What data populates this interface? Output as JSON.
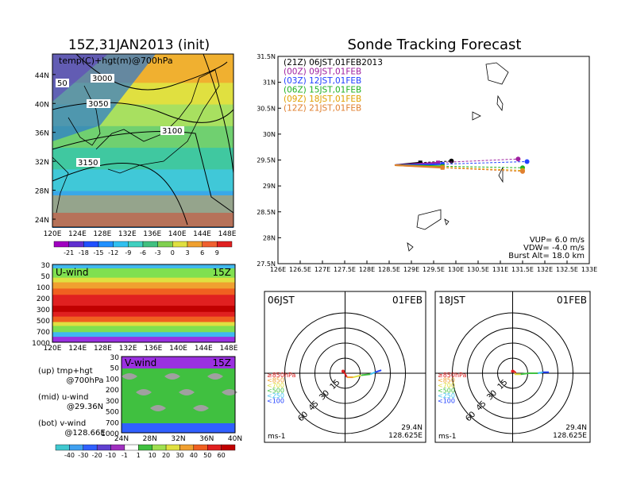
{
  "main_title": "Sonde Tracking Forecast",
  "init_title": "15Z,31JAN2013 (init)",
  "colors": {
    "track_00Z": "#a020a0",
    "track_03Z": "#2040ff",
    "track_06Z": "#20b020",
    "track_09Z": "#e0a000",
    "track_12Z": "#e08030",
    "track_21Z": "#000000",
    "map_bg_t": [
      "#2a8ad8",
      "#3aa8e8",
      "#40c8d8",
      "#40c8a0",
      "#70d070",
      "#a8e060",
      "#e0e040",
      "#f0b030",
      "#f08030",
      "#e84020"
    ],
    "wind_bands": [
      "#9a30e0",
      "#3060ff",
      "#40b8f0",
      "#40d090",
      "#80e050",
      "#e0e040",
      "#f0a030",
      "#f06020",
      "#e02020",
      "#c00000"
    ]
  },
  "chart_data": [
    {
      "type": "heatmap",
      "name_label": "temp(C)+hgt(m)@700hPa",
      "x_ticks": [
        "120E",
        "124E",
        "128E",
        "132E",
        "136E",
        "140E",
        "144E",
        "148E"
      ],
      "y_ticks": [
        "24N",
        "28N",
        "32N",
        "36N",
        "40N",
        "44N"
      ],
      "contour_labels": [
        "3000",
        "3050",
        "3100",
        "3150",
        "50"
      ],
      "colorbar": [
        "-21",
        "-18",
        "-15",
        "-12",
        "-9",
        "-6",
        "-3",
        "0",
        "3",
        "6",
        "9"
      ]
    },
    {
      "type": "line",
      "x_ticks": [
        "126E",
        "126.5E",
        "127E",
        "127.5E",
        "128E",
        "128.5E",
        "129E",
        "129.5E",
        "130E",
        "130.5E",
        "131E",
        "131.5E",
        "132E",
        "132.5E",
        "133E"
      ],
      "y_ticks": [
        "27.5N",
        "28N",
        "28.5N",
        "29N",
        "29.5N",
        "30N",
        "30.5N",
        "31N",
        "31.5N"
      ],
      "xlim": [
        126,
        133
      ],
      "ylim": [
        27.5,
        31.5
      ],
      "legend": [
        {
          "label": "(21Z) 06JST,01FEB2013",
          "color": "#000000"
        },
        {
          "label": "(00Z) 09JST,01FEB",
          "color": "#a020a0"
        },
        {
          "label": "(03Z) 12JST,01FEB",
          "color": "#2040ff"
        },
        {
          "label": "(06Z) 15JST,01FEB",
          "color": "#20b020"
        },
        {
          "label": "(09Z) 18JST,01FEB",
          "color": "#e0a000"
        },
        {
          "label": "(12Z) 21JST,01FEB",
          "color": "#e08030"
        }
      ],
      "series": [
        {
          "name": "(21Z) 06JST,01FEB2013",
          "x": [
            128.625,
            129.2,
            129.9
          ],
          "y": [
            29.4,
            29.45,
            29.48
          ]
        },
        {
          "name": "(00Z) 09JST,01FEB",
          "x": [
            128.625,
            129.6,
            131.4
          ],
          "y": [
            29.4,
            29.45,
            29.52
          ]
        },
        {
          "name": "(03Z) 12JST,01FEB",
          "x": [
            128.625,
            129.7,
            131.6
          ],
          "y": [
            29.4,
            29.42,
            29.47
          ]
        },
        {
          "name": "(06Z) 15JST,01FEB",
          "x": [
            128.625,
            129.7,
            131.5
          ],
          "y": [
            29.4,
            29.38,
            29.35
          ]
        },
        {
          "name": "(09Z) 18JST,01FEB",
          "x": [
            128.625,
            129.7,
            131.5
          ],
          "y": [
            29.4,
            29.36,
            29.3
          ]
        },
        {
          "name": "(12Z) 21JST,01FEB",
          "x": [
            128.625,
            129.7,
            131.5
          ],
          "y": [
            29.4,
            29.35,
            29.28
          ]
        }
      ],
      "params": [
        "VUP= 6.0 m/s",
        "VDW= -4.0 m/s",
        "Burst Alt= 18.0 km"
      ]
    },
    {
      "type": "heatmap",
      "name_label": "U-wind",
      "time_label": "15Z",
      "x_ticks": [
        "120E",
        "124E",
        "128E",
        "132E",
        "136E",
        "140E",
        "144E",
        "148E"
      ],
      "y_ticks": [
        "30",
        "50",
        "100",
        "200",
        "300",
        "500",
        "700",
        "1000"
      ]
    },
    {
      "type": "heatmap",
      "name_label": "V-wind",
      "time_label": "15Z",
      "x_ticks": [
        "24N",
        "28N",
        "32N",
        "36N",
        "40N"
      ],
      "y_ticks": [
        "30",
        "50",
        "100",
        "200",
        "300",
        "500",
        "700",
        "1000"
      ],
      "colorbar": [
        "-40",
        "-30",
        "-20",
        "-10",
        "-1",
        "1",
        "10",
        "20",
        "30",
        "40",
        "50",
        "60"
      ]
    },
    {
      "type": "line",
      "name_label": "06JST",
      "date_label": "01FEB",
      "ring_labels": [
        "15",
        "30",
        "45",
        "60"
      ],
      "unit_label": "ms-1",
      "location": [
        "29.4N",
        "128.625E"
      ],
      "levels": [
        {
          "label": "≥850hPa",
          "color": "#e02020"
        },
        {
          "label": "<850",
          "color": "#f0a030"
        },
        {
          "label": "<700",
          "color": "#e0e040"
        },
        {
          "label": "<500",
          "color": "#40c040"
        },
        {
          "label": "<250",
          "color": "#40c0f0"
        },
        {
          "label": "<100",
          "color": "#2040ff"
        }
      ],
      "hodograph_uv": [
        [
          -2,
          2
        ],
        [
          -1,
          1
        ],
        [
          2,
          -4
        ],
        [
          8,
          -4
        ],
        [
          16,
          -2
        ],
        [
          25,
          -1
        ],
        [
          30,
          1
        ],
        [
          36,
          3
        ]
      ]
    },
    {
      "type": "line",
      "name_label": "18JST",
      "date_label": "01FEB",
      "ring_labels": [
        "15",
        "30",
        "45",
        "60"
      ],
      "unit_label": "ms-1",
      "location": [
        "29.4N",
        "128.625E"
      ],
      "levels": [
        {
          "label": "≥850hPa",
          "color": "#e02020"
        },
        {
          "label": "<850",
          "color": "#f0a030"
        },
        {
          "label": "<700",
          "color": "#e0e040"
        },
        {
          "label": "<500",
          "color": "#40c040"
        },
        {
          "label": "<250",
          "color": "#40c0f0"
        },
        {
          "label": "<100",
          "color": "#2040ff"
        }
      ],
      "hodograph_uv": [
        [
          0,
          2
        ],
        [
          2,
          2
        ],
        [
          3,
          0
        ],
        [
          2,
          -1
        ],
        [
          8,
          -1
        ],
        [
          16,
          0
        ],
        [
          25,
          0
        ],
        [
          30,
          1
        ],
        [
          36,
          1
        ]
      ]
    }
  ],
  "side_notes": [
    {
      "a": "(up) tmp+hgt",
      "b": "@700hPa"
    },
    {
      "a": "(mid) u-wind",
      "b": "@29.36N"
    },
    {
      "a": "(bot) v-wind",
      "b": "@128.66E"
    }
  ]
}
